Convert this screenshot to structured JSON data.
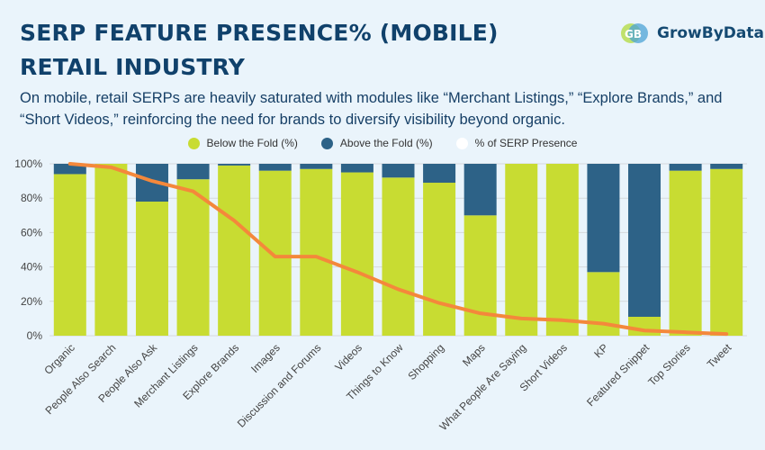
{
  "header": {
    "title_line1": "SERP FEATURE PRESENCE% (MOBILE)",
    "title_line2": "RETAIL INDUSTRY",
    "subtitle": "On mobile, retail SERPs are heavily saturated with modules like “Merchant Listings,” “Explore Brands,” and “Short Videos,” reinforcing the need for brands to diversify visibility beyond organic."
  },
  "logo": {
    "text_main": "Grow",
    "text_accent": "ByData",
    "icon": "growbydata-logo-icon"
  },
  "colors": {
    "below": "#c8dc32",
    "above": "#2d6287",
    "line": "#f4883b",
    "presence_swatch": "#ffffff",
    "grid": "#d5d9dc",
    "axis_text": "#444444"
  },
  "chart_data": {
    "type": "bar",
    "stacked": true,
    "categories": [
      "Organic",
      "People Also Search",
      "People Also Ask",
      "Merchant Listings",
      "Explore Brands",
      "Images",
      "Discussion and Forums",
      "Videos",
      "Things to Know",
      "Shopping",
      "Maps",
      "What People Are Saying",
      "Short Videos",
      "KP",
      "Featured Snippet",
      "Top Stories",
      "Tweet"
    ],
    "series": [
      {
        "name": "Below the Fold (%)",
        "kind": "bar",
        "values": [
          94,
          100,
          78,
          91,
          99,
          96,
          97,
          95,
          92,
          89,
          70,
          100,
          100,
          37,
          11,
          96,
          97
        ]
      },
      {
        "name": "Above the Fold (%)",
        "kind": "bar",
        "values": [
          6,
          0,
          22,
          9,
          1,
          4,
          3,
          5,
          8,
          11,
          30,
          0,
          0,
          63,
          89,
          4,
          3
        ]
      },
      {
        "name": "% of SERP Presence",
        "kind": "line",
        "values": [
          100,
          98,
          90,
          84,
          67,
          46,
          46,
          37,
          27,
          19,
          13,
          10,
          9,
          7,
          3,
          2,
          1
        ]
      }
    ],
    "yticks": [
      "0%",
      "20%",
      "40%",
      "60%",
      "80%",
      "100%"
    ],
    "ylim": [
      0,
      100
    ],
    "grid": true,
    "legend_position": "top-center"
  }
}
